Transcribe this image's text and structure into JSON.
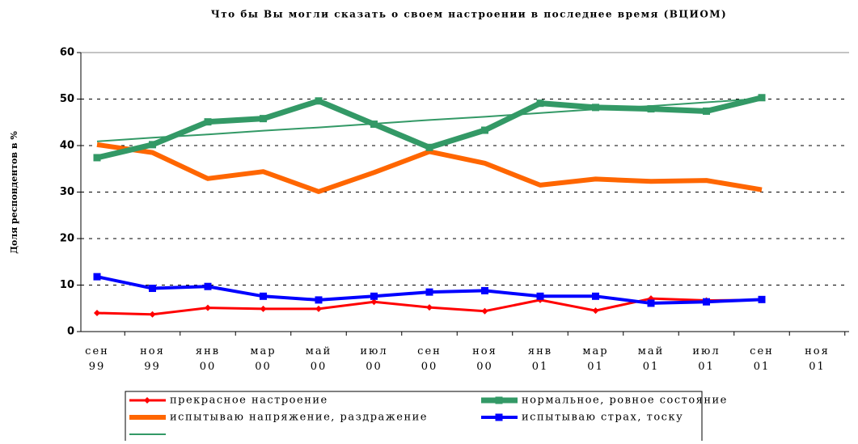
{
  "chart_data": {
    "type": "line",
    "title": "Что бы Вы могли сказать о своем настроении в последнее время (ВЦИОМ)",
    "y_label": "Доля респондентов в %",
    "categories": [
      "сен 99",
      "ноя 99",
      "янв 00",
      "мар 00",
      "май 00",
      "июл 00",
      "сен 00",
      "ноя 00",
      "янв 01",
      "мар 01",
      "май 01",
      "июл 01",
      "сен 01",
      "ноя 01"
    ],
    "series": [
      {
        "name": "прекрасное настроение",
        "color": "#ff0000",
        "values": [
          4,
          3.7,
          5.1,
          4.9,
          4.9,
          6.4,
          5.2,
          4.4,
          6.8,
          4.5,
          7.1,
          6.7,
          6.8,
          null
        ]
      },
      {
        "name": "нормальное, ровное состояние",
        "color": "#339966",
        "values": [
          37.4,
          40.2,
          45.1,
          45.8,
          49.6,
          44.6,
          39.6,
          43.3,
          49.1,
          48.2,
          47.9,
          47.4,
          50.3,
          null
        ]
      },
      {
        "name": "испытываю напряжение, раздражение",
        "color": "#ff6600",
        "values": [
          40.2,
          38.5,
          32.9,
          34.4,
          30.1,
          34.2,
          38.7,
          36.2,
          31.5,
          32.8,
          32.3,
          32.5,
          30.5,
          null
        ]
      },
      {
        "name": "испытываю страх, тоску",
        "color": "#0000ff",
        "values": [
          11.8,
          9.3,
          9.7,
          7.6,
          6.8,
          7.6,
          8.5,
          8.8,
          7.6,
          7.6,
          6.1,
          6.4,
          6.9,
          null
        ]
      },
      {
        "color": "#339966",
        "values": [
          40.9,
          41.7,
          42.4,
          43.2,
          43.9,
          44.7,
          45.5,
          46.2,
          47.0,
          47.8,
          48.5,
          49.3,
          50.1,
          null
        ]
      }
    ],
    "ylim": [
      0,
      60
    ],
    "yticks": [
      0,
      10,
      20,
      30,
      40,
      50,
      60
    ],
    "grid": true
  }
}
